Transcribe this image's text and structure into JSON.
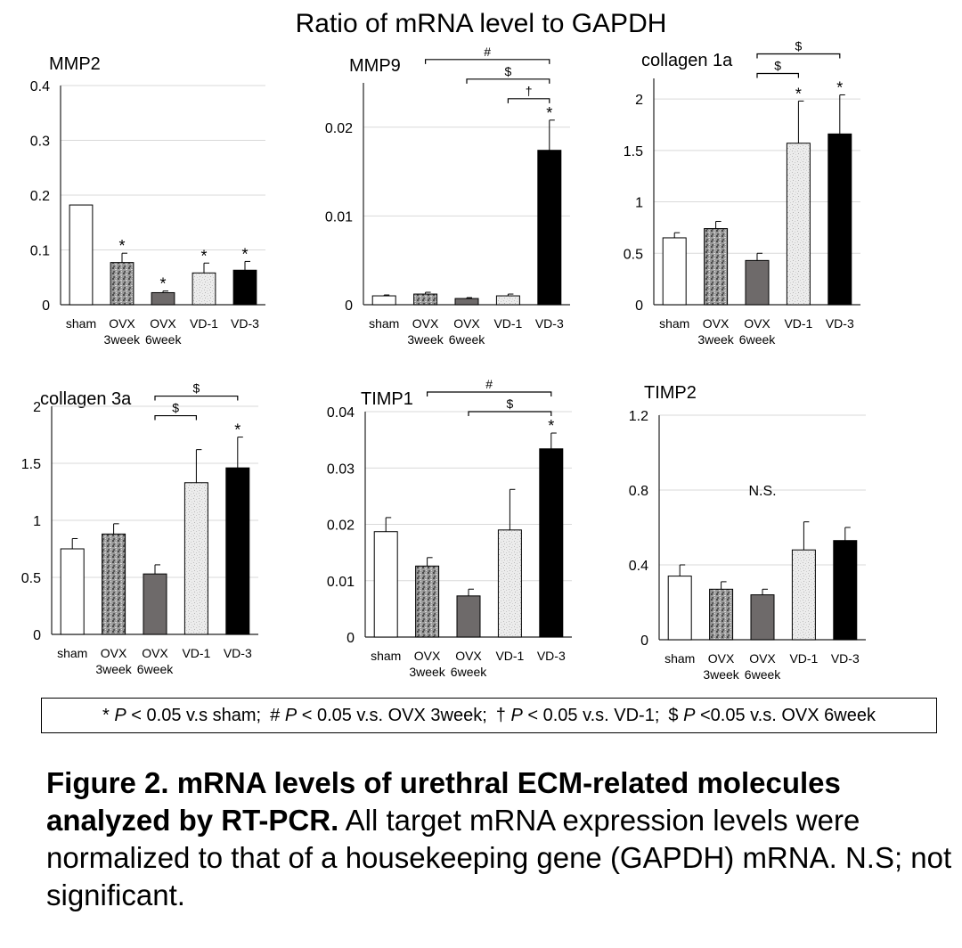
{
  "main_title": "Ratio of mRNA level to GAPDH",
  "legend": [
    {
      "symbol": "*",
      "p": "P",
      "text": " < 0.05 v.s sham;"
    },
    {
      "symbol": "#",
      "p": "P",
      "text": " < 0.05 v.s. OVX 3week;"
    },
    {
      "symbol": "†",
      "p": "P",
      "text": " < 0.05 v.s. VD-1;"
    },
    {
      "symbol": "$",
      "p": "P",
      "text": " <0.05 v.s. OVX 6week"
    }
  ],
  "caption": {
    "bold": "Figure 2. mRNA levels of urethral ECM-related molecules analyzed by RT-PCR.",
    "normal": " All target mRNA expression levels were normalized to that of a housekeeping gene (GAPDH) mRNA. N.S; not significant."
  },
  "colors": {
    "sham": "#ffffff",
    "ovx3": "#8a8a8a",
    "ovx6": "#6e6a6a",
    "vd1": "#e6e6e6",
    "vd3": "#000000"
  },
  "chart_data": [
    {
      "type": "bar",
      "title": "MMP2",
      "categories": [
        "sham",
        "OVX 3week",
        "OVX 6week",
        "VD-1",
        "VD-3"
      ],
      "category_labels": [
        "sham",
        "OVX",
        "OVX",
        "VD-1",
        "VD-3"
      ],
      "sublabels": [
        "3week",
        "6week"
      ],
      "values": [
        0.182,
        0.077,
        0.022,
        0.058,
        0.063
      ],
      "errors": [
        0.0,
        0.017,
        0.003,
        0.018,
        0.016
      ],
      "ylim": [
        0,
        0.4
      ],
      "ticks": [
        0,
        0.1,
        0.2,
        0.3,
        0.4
      ],
      "tick_labels": [
        "0",
        "0.1",
        "0.2",
        "0.3",
        "0.4"
      ],
      "stars": [
        "",
        "*",
        "*",
        "*",
        "*"
      ],
      "brackets": [],
      "note": ""
    },
    {
      "type": "bar",
      "title": "MMP9",
      "categories": [
        "sham",
        "OVX 3week",
        "OVX 6week",
        "VD-1",
        "VD-3"
      ],
      "category_labels": [
        "sham",
        "OVX",
        "OVX",
        "VD-1",
        "VD-3"
      ],
      "sublabels": [
        "3week",
        "6week"
      ],
      "values": [
        0.001,
        0.0012,
        0.0007,
        0.001,
        0.0174
      ],
      "errors": [
        0.0001,
        0.0002,
        0.0001,
        0.0002,
        0.0034
      ],
      "ylim": [
        0,
        0.025
      ],
      "ticks": [
        0,
        0.01,
        0.02
      ],
      "tick_labels": [
        "0",
        "0.01",
        "0.02"
      ],
      "stars": [
        "",
        "",
        "",
        "",
        "*"
      ],
      "brackets": [
        {
          "from": 1,
          "to": 4,
          "symbol": "#"
        },
        {
          "from": 2,
          "to": 4,
          "symbol": "$"
        },
        {
          "from": 3,
          "to": 4,
          "symbol": "†"
        }
      ],
      "note": ""
    },
    {
      "type": "bar",
      "title": "collagen 1a",
      "categories": [
        "sham",
        "OVX 3week",
        "OVX 6week",
        "VD-1",
        "VD-3"
      ],
      "category_labels": [
        "sham",
        "OVX",
        "OVX",
        "VD-1",
        "VD-3"
      ],
      "sublabels": [
        "3week",
        "6week"
      ],
      "values": [
        0.65,
        0.74,
        0.43,
        1.57,
        1.66
      ],
      "errors": [
        0.05,
        0.07,
        0.07,
        0.41,
        0.38
      ],
      "ylim": [
        0,
        2.2
      ],
      "ticks": [
        0,
        0.5,
        1,
        1.5,
        2
      ],
      "tick_labels": [
        "0",
        "0.5",
        "1",
        "1.5",
        "2"
      ],
      "stars": [
        "",
        "",
        "",
        "*",
        "*"
      ],
      "brackets": [
        {
          "from": 2,
          "to": 3,
          "symbol": "$"
        },
        {
          "from": 2,
          "to": 4,
          "symbol": "$"
        }
      ],
      "note": ""
    },
    {
      "type": "bar",
      "title": "collagen 3a",
      "categories": [
        "sham",
        "OVX 3week",
        "OVX 6week",
        "VD-1",
        "VD-3"
      ],
      "category_labels": [
        "sham",
        "OVX",
        "OVX",
        "VD-1",
        "VD-3"
      ],
      "sublabels": [
        "3week",
        "6week"
      ],
      "values": [
        0.75,
        0.88,
        0.53,
        1.33,
        1.46
      ],
      "errors": [
        0.09,
        0.09,
        0.08,
        0.29,
        0.27
      ],
      "ylim": [
        0,
        2
      ],
      "ticks": [
        0,
        0.5,
        1,
        1.5,
        2
      ],
      "tick_labels": [
        "0",
        "0.5",
        "1",
        "1.5",
        "2"
      ],
      "stars": [
        "",
        "",
        "",
        "",
        "*"
      ],
      "brackets": [
        {
          "from": 2,
          "to": 3,
          "symbol": "$"
        },
        {
          "from": 2,
          "to": 4,
          "symbol": "$"
        }
      ],
      "note": ""
    },
    {
      "type": "bar",
      "title": "TIMP1",
      "categories": [
        "sham",
        "OVX 3week",
        "OVX 6week",
        "VD-1",
        "VD-3"
      ],
      "category_labels": [
        "sham",
        "OVX",
        "OVX",
        "VD-1",
        "VD-3"
      ],
      "sublabels": [
        "3week",
        "6week"
      ],
      "values": [
        0.0187,
        0.0126,
        0.0073,
        0.019,
        0.0334
      ],
      "errors": [
        0.0025,
        0.0015,
        0.0012,
        0.0072,
        0.0028
      ],
      "ylim": [
        0,
        0.04
      ],
      "ticks": [
        0,
        0.01,
        0.02,
        0.03,
        0.04
      ],
      "tick_labels": [
        "0",
        "0.01",
        "0.02",
        "0.03",
        "0.04"
      ],
      "stars": [
        "",
        "",
        "",
        "",
        "*"
      ],
      "brackets": [
        {
          "from": 1,
          "to": 4,
          "symbol": "#"
        },
        {
          "from": 2,
          "to": 4,
          "symbol": "$"
        }
      ],
      "note": ""
    },
    {
      "type": "bar",
      "title": "TIMP2",
      "categories": [
        "sham",
        "OVX 3week",
        "OVX 6week",
        "VD-1",
        "VD-3"
      ],
      "category_labels": [
        "sham",
        "OVX",
        "OVX",
        "VD-1",
        "VD-3"
      ],
      "sublabels": [
        "3week",
        "6week"
      ],
      "values": [
        0.34,
        0.27,
        0.24,
        0.48,
        0.53
      ],
      "errors": [
        0.06,
        0.04,
        0.03,
        0.15,
        0.07
      ],
      "ylim": [
        0,
        1.2
      ],
      "ticks": [
        0,
        0.4,
        0.8,
        1.2
      ],
      "tick_labels": [
        "0",
        "0.4",
        "0.8",
        "1.2"
      ],
      "stars": [
        "",
        "",
        "",
        "",
        ""
      ],
      "brackets": [],
      "note": "N.S."
    }
  ]
}
